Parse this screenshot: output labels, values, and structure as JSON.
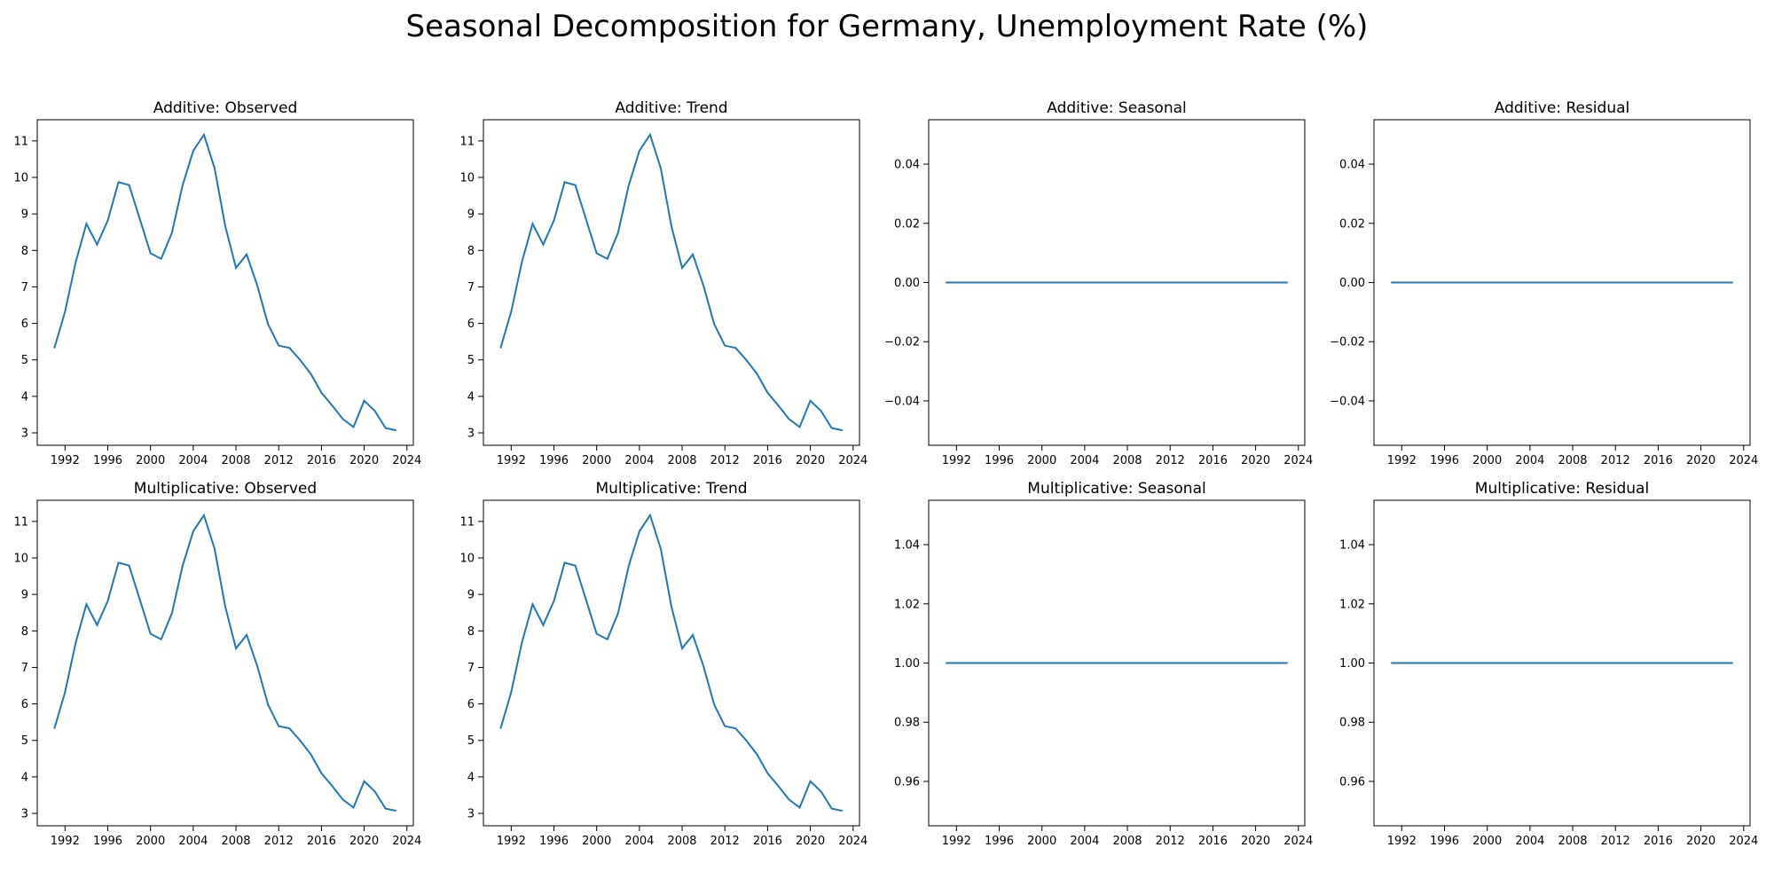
{
  "title": "Seasonal Decomposition for Germany, Unemployment Rate (%)",
  "colors": {
    "line": "#1f77b4",
    "axis": "#000000",
    "background": "#ffffff"
  },
  "chart_data": [
    {
      "type": "line",
      "title": "Additive: Observed",
      "x": [
        1991,
        1992,
        1993,
        1994,
        1995,
        1996,
        1997,
        1998,
        1999,
        2000,
        2001,
        2002,
        2003,
        2004,
        2005,
        2006,
        2007,
        2008,
        2009,
        2010,
        2011,
        2012,
        2013,
        2014,
        2015,
        2016,
        2017,
        2018,
        2019,
        2020,
        2021,
        2022,
        2023
      ],
      "y": [
        5.32,
        6.32,
        7.68,
        8.73,
        8.16,
        8.82,
        9.87,
        9.79,
        8.86,
        7.92,
        7.77,
        8.48,
        9.78,
        10.73,
        11.17,
        10.25,
        8.66,
        7.52,
        7.89,
        7.03,
        5.98,
        5.39,
        5.33,
        5.0,
        4.62,
        4.1,
        3.75,
        3.38,
        3.16,
        3.88,
        3.6,
        3.13,
        3.07
      ],
      "xticks": [
        "1992",
        "1996",
        "2000",
        "2004",
        "2008",
        "2012",
        "2016",
        "2020",
        "2024"
      ],
      "xtick_values": [
        1992,
        1996,
        2000,
        2004,
        2008,
        2012,
        2016,
        2020,
        2024
      ],
      "yticks": [
        "3",
        "4",
        "5",
        "6",
        "7",
        "8",
        "9",
        "10",
        "11"
      ],
      "ytick_values": [
        3,
        4,
        5,
        6,
        7,
        8,
        9,
        10,
        11
      ],
      "xlim": [
        1989.4,
        2024.6
      ],
      "ylim": [
        2.66,
        11.58
      ]
    },
    {
      "type": "line",
      "title": "Additive: Trend",
      "x": [
        1991,
        1992,
        1993,
        1994,
        1995,
        1996,
        1997,
        1998,
        1999,
        2000,
        2001,
        2002,
        2003,
        2004,
        2005,
        2006,
        2007,
        2008,
        2009,
        2010,
        2011,
        2012,
        2013,
        2014,
        2015,
        2016,
        2017,
        2018,
        2019,
        2020,
        2021,
        2022,
        2023
      ],
      "y": [
        5.32,
        6.32,
        7.68,
        8.73,
        8.16,
        8.82,
        9.87,
        9.79,
        8.86,
        7.92,
        7.77,
        8.48,
        9.78,
        10.73,
        11.17,
        10.25,
        8.66,
        7.52,
        7.89,
        7.03,
        5.98,
        5.39,
        5.33,
        5.0,
        4.62,
        4.1,
        3.75,
        3.38,
        3.16,
        3.88,
        3.6,
        3.13,
        3.07
      ],
      "xticks": [
        "1992",
        "1996",
        "2000",
        "2004",
        "2008",
        "2012",
        "2016",
        "2020",
        "2024"
      ],
      "xtick_values": [
        1992,
        1996,
        2000,
        2004,
        2008,
        2012,
        2016,
        2020,
        2024
      ],
      "yticks": [
        "3",
        "4",
        "5",
        "6",
        "7",
        "8",
        "9",
        "10",
        "11"
      ],
      "ytick_values": [
        3,
        4,
        5,
        6,
        7,
        8,
        9,
        10,
        11
      ],
      "xlim": [
        1989.4,
        2024.6
      ],
      "ylim": [
        2.66,
        11.58
      ]
    },
    {
      "type": "line",
      "title": "Additive: Seasonal",
      "x": [
        1991,
        2023
      ],
      "y": [
        0.0,
        0.0
      ],
      "xticks": [
        "1992",
        "1996",
        "2000",
        "2004",
        "2008",
        "2012",
        "2016",
        "2020",
        "2024"
      ],
      "xtick_values": [
        1992,
        1996,
        2000,
        2004,
        2008,
        2012,
        2016,
        2020,
        2024
      ],
      "yticks": [
        "−0.04",
        "−0.02",
        "0.00",
        "0.02",
        "0.04"
      ],
      "ytick_values": [
        -0.04,
        -0.02,
        0.0,
        0.02,
        0.04
      ],
      "xlim": [
        1989.4,
        2024.6
      ],
      "ylim": [
        -0.055,
        0.055
      ]
    },
    {
      "type": "line",
      "title": "Additive: Residual",
      "x": [
        1991,
        2023
      ],
      "y": [
        0.0,
        0.0
      ],
      "xticks": [
        "1992",
        "1996",
        "2000",
        "2004",
        "2008",
        "2012",
        "2016",
        "2020",
        "2024"
      ],
      "xtick_values": [
        1992,
        1996,
        2000,
        2004,
        2008,
        2012,
        2016,
        2020,
        2024
      ],
      "yticks": [
        "−0.04",
        "−0.02",
        "0.00",
        "0.02",
        "0.04"
      ],
      "ytick_values": [
        -0.04,
        -0.02,
        0.0,
        0.02,
        0.04
      ],
      "xlim": [
        1989.4,
        2024.6
      ],
      "ylim": [
        -0.055,
        0.055
      ]
    },
    {
      "type": "line",
      "title": "Multiplicative: Observed",
      "x": [
        1991,
        1992,
        1993,
        1994,
        1995,
        1996,
        1997,
        1998,
        1999,
        2000,
        2001,
        2002,
        2003,
        2004,
        2005,
        2006,
        2007,
        2008,
        2009,
        2010,
        2011,
        2012,
        2013,
        2014,
        2015,
        2016,
        2017,
        2018,
        2019,
        2020,
        2021,
        2022,
        2023
      ],
      "y": [
        5.32,
        6.32,
        7.68,
        8.73,
        8.16,
        8.82,
        9.87,
        9.79,
        8.86,
        7.92,
        7.77,
        8.48,
        9.78,
        10.73,
        11.17,
        10.25,
        8.66,
        7.52,
        7.89,
        7.03,
        5.98,
        5.39,
        5.33,
        5.0,
        4.62,
        4.1,
        3.75,
        3.38,
        3.16,
        3.88,
        3.6,
        3.13,
        3.07
      ],
      "xticks": [
        "1992",
        "1996",
        "2000",
        "2004",
        "2008",
        "2012",
        "2016",
        "2020",
        "2024"
      ],
      "xtick_values": [
        1992,
        1996,
        2000,
        2004,
        2008,
        2012,
        2016,
        2020,
        2024
      ],
      "yticks": [
        "3",
        "4",
        "5",
        "6",
        "7",
        "8",
        "9",
        "10",
        "11"
      ],
      "ytick_values": [
        3,
        4,
        5,
        6,
        7,
        8,
        9,
        10,
        11
      ],
      "xlim": [
        1989.4,
        2024.6
      ],
      "ylim": [
        2.66,
        11.58
      ]
    },
    {
      "type": "line",
      "title": "Multiplicative: Trend",
      "x": [
        1991,
        1992,
        1993,
        1994,
        1995,
        1996,
        1997,
        1998,
        1999,
        2000,
        2001,
        2002,
        2003,
        2004,
        2005,
        2006,
        2007,
        2008,
        2009,
        2010,
        2011,
        2012,
        2013,
        2014,
        2015,
        2016,
        2017,
        2018,
        2019,
        2020,
        2021,
        2022,
        2023
      ],
      "y": [
        5.32,
        6.32,
        7.68,
        8.73,
        8.16,
        8.82,
        9.87,
        9.79,
        8.86,
        7.92,
        7.77,
        8.48,
        9.78,
        10.73,
        11.17,
        10.25,
        8.66,
        7.52,
        7.89,
        7.03,
        5.98,
        5.39,
        5.33,
        5.0,
        4.62,
        4.1,
        3.75,
        3.38,
        3.16,
        3.88,
        3.6,
        3.13,
        3.07
      ],
      "xticks": [
        "1992",
        "1996",
        "2000",
        "2004",
        "2008",
        "2012",
        "2016",
        "2020",
        "2024"
      ],
      "xtick_values": [
        1992,
        1996,
        2000,
        2004,
        2008,
        2012,
        2016,
        2020,
        2024
      ],
      "yticks": [
        "3",
        "4",
        "5",
        "6",
        "7",
        "8",
        "9",
        "10",
        "11"
      ],
      "ytick_values": [
        3,
        4,
        5,
        6,
        7,
        8,
        9,
        10,
        11
      ],
      "xlim": [
        1989.4,
        2024.6
      ],
      "ylim": [
        2.66,
        11.58
      ]
    },
    {
      "type": "line",
      "title": "Multiplicative: Seasonal",
      "x": [
        1991,
        2023
      ],
      "y": [
        1.0,
        1.0
      ],
      "xticks": [
        "1992",
        "1996",
        "2000",
        "2004",
        "2008",
        "2012",
        "2016",
        "2020",
        "2024"
      ],
      "xtick_values": [
        1992,
        1996,
        2000,
        2004,
        2008,
        2012,
        2016,
        2020,
        2024
      ],
      "yticks": [
        "0.96",
        "0.98",
        "1.00",
        "1.02",
        "1.04"
      ],
      "ytick_values": [
        0.96,
        0.98,
        1.0,
        1.02,
        1.04
      ],
      "xlim": [
        1989.4,
        2024.6
      ],
      "ylim": [
        0.945,
        1.055
      ]
    },
    {
      "type": "line",
      "title": "Multiplicative: Residual",
      "x": [
        1991,
        2023
      ],
      "y": [
        1.0,
        1.0
      ],
      "xticks": [
        "1992",
        "1996",
        "2000",
        "2004",
        "2008",
        "2012",
        "2016",
        "2020",
        "2024"
      ],
      "xtick_values": [
        1992,
        1996,
        2000,
        2004,
        2008,
        2012,
        2016,
        2020,
        2024
      ],
      "yticks": [
        "0.96",
        "0.98",
        "1.00",
        "1.02",
        "1.04"
      ],
      "ytick_values": [
        0.96,
        0.98,
        1.0,
        1.02,
        1.04
      ],
      "xlim": [
        1989.4,
        2024.6
      ],
      "ylim": [
        0.945,
        1.055
      ]
    }
  ]
}
